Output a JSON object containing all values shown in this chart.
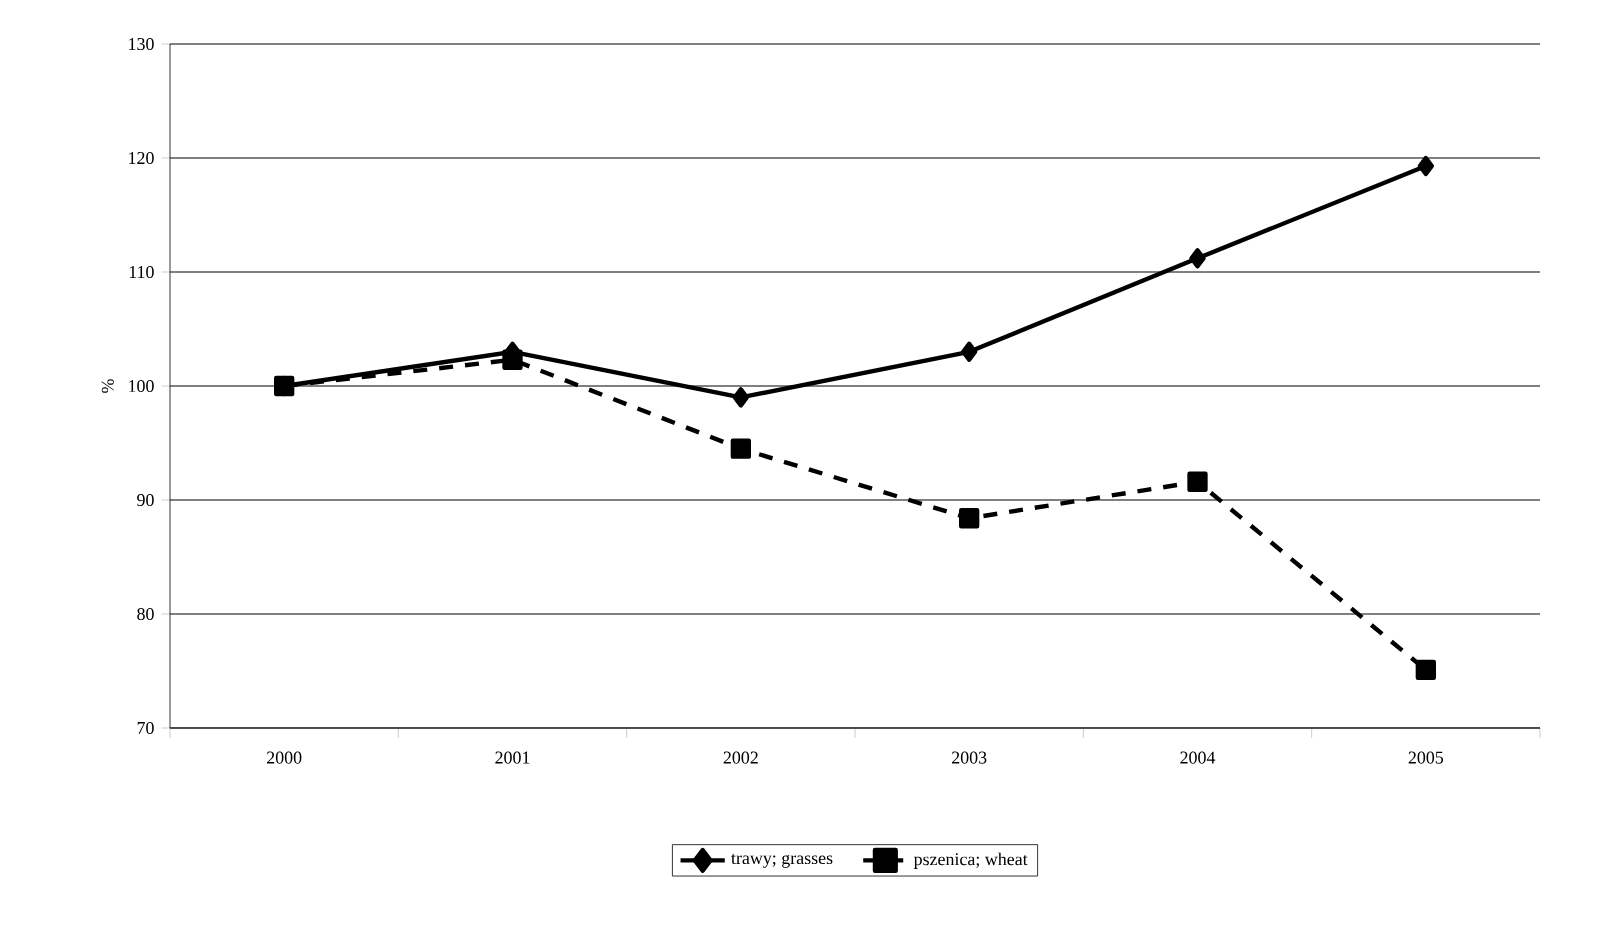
{
  "chart_data": {
    "type": "line",
    "ylabel": "%",
    "categories": [
      "2000",
      "2001",
      "2002",
      "2003",
      "2004",
      "2005"
    ],
    "series": [
      {
        "name": "trawy; grasses",
        "color": "#000000",
        "marker": "diamond",
        "line_style": "solid",
        "values": [
          100,
          103,
          99,
          103,
          111.2,
          119.3
        ]
      },
      {
        "name": "pszenica; wheat",
        "color": "#000000",
        "marker": "square",
        "line_style": "dashed",
        "values": [
          100,
          102.3,
          94.5,
          88.4,
          91.6,
          75.1
        ]
      }
    ],
    "ylim": [
      70,
      130
    ],
    "yticks": [
      70,
      80,
      90,
      100,
      110,
      120,
      130
    ],
    "grid": "y",
    "legend": "bottom"
  }
}
